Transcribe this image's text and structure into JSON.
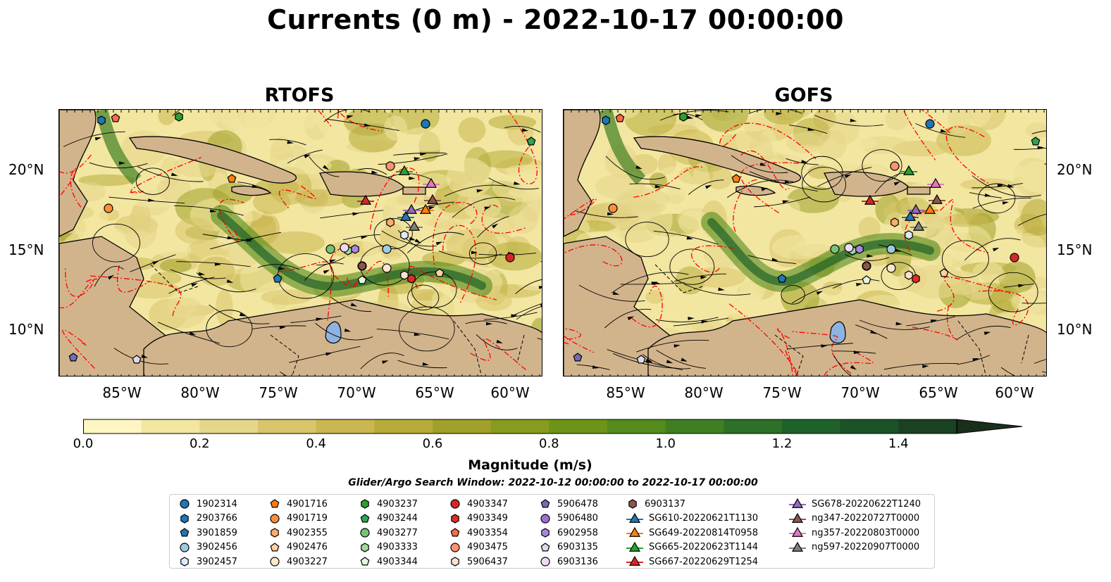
{
  "title": "Currents (0 m) - 2022-10-17 00:00:00",
  "panels": [
    {
      "title": "RTOFS"
    },
    {
      "title": "GOFS"
    }
  ],
  "axes": {
    "y_ticks": [
      "20°N",
      "15°N",
      "10°N"
    ],
    "x_ticks": [
      "85°W",
      "80°W",
      "75°W",
      "70°W",
      "65°W",
      "60°W"
    ]
  },
  "colorbar": {
    "label": "Magnitude (m/s)",
    "ticks": [
      "0.0",
      "0.2",
      "0.4",
      "0.6",
      "0.8",
      "1.0",
      "1.2",
      "1.4"
    ],
    "min": 0.0,
    "max": 1.5,
    "step": 0.1,
    "extend": "max",
    "colors": [
      "#fdf6c2",
      "#f2e6a1",
      "#e5d68a",
      "#d8c56c",
      "#cab751",
      "#b7ab3a",
      "#a1a12a",
      "#869c1c",
      "#6d9419",
      "#548b1c",
      "#3f7f22",
      "#2c7127",
      "#1f6229",
      "#1b5227",
      "#1a4121",
      "#192f1a"
    ]
  },
  "search_window": "Glider/Argo Search Window: 2022-10-12 00:00:00 to 2022-10-17 00:00:00",
  "legend": {
    "columns": [
      [
        {
          "label": "1902314",
          "marker": "circle",
          "color": "#1f77b4"
        },
        {
          "label": "2903766",
          "marker": "hexagon",
          "color": "#1f77b4"
        },
        {
          "label": "3901859",
          "marker": "pentagon",
          "color": "#1f77b4"
        },
        {
          "label": "3902456",
          "marker": "circle",
          "color": "#9ecae1"
        },
        {
          "label": "3902457",
          "marker": "hexagon",
          "color": "#deebf7"
        }
      ],
      [
        {
          "label": "4901716",
          "marker": "pentagon",
          "color": "#ff7f0e"
        },
        {
          "label": "4901719",
          "marker": "circle",
          "color": "#fd8d3c"
        },
        {
          "label": "4902355",
          "marker": "hexagon",
          "color": "#fdae6b"
        },
        {
          "label": "4902476",
          "marker": "pentagon",
          "color": "#fdd0a2"
        },
        {
          "label": "4903227",
          "marker": "circle",
          "color": "#fee6ce"
        }
      ],
      [
        {
          "label": "4903237",
          "marker": "hexagon",
          "color": "#2ca02c"
        },
        {
          "label": "4903244",
          "marker": "pentagon",
          "color": "#31a354"
        },
        {
          "label": "4903277",
          "marker": "circle",
          "color": "#74c476"
        },
        {
          "label": "4903333",
          "marker": "hexagon",
          "color": "#a1d99b"
        },
        {
          "label": "4903344",
          "marker": "pentagon",
          "color": "#e5f5e0"
        }
      ],
      [
        {
          "label": "4903347",
          "marker": "circle",
          "color": "#d62728"
        },
        {
          "label": "4903349",
          "marker": "hexagon",
          "color": "#de2d26"
        },
        {
          "label": "4903354",
          "marker": "pentagon",
          "color": "#fb6a4a"
        },
        {
          "label": "4903475",
          "marker": "circle",
          "color": "#fc9272"
        },
        {
          "label": "5906437",
          "marker": "hexagon",
          "color": "#fee0d2"
        }
      ],
      [
        {
          "label": "5906478",
          "marker": "pentagon",
          "color": "#756bb1"
        },
        {
          "label": "5906480",
          "marker": "circle",
          "color": "#9e6fcf"
        },
        {
          "label": "6902958",
          "marker": "hexagon",
          "color": "#a987e0"
        },
        {
          "label": "6903135",
          "marker": "pentagon",
          "color": "#dadaeb"
        },
        {
          "label": "6903136",
          "marker": "circle",
          "color": "#efd9f7"
        }
      ],
      [
        {
          "label": "6903137",
          "marker": "hexagon",
          "color": "#8c564b"
        },
        {
          "label": "SG610-20220621T1130",
          "marker": "triangle-line",
          "color": "#1f77b4"
        },
        {
          "label": "SG649-20220814T0958",
          "marker": "triangle-line",
          "color": "#ff7f0e"
        },
        {
          "label": "SG665-20220623T1144",
          "marker": "triangle-line",
          "color": "#2ca02c"
        },
        {
          "label": "SG667-20220629T1254",
          "marker": "triangle-line",
          "color": "#d62728"
        }
      ],
      [
        {
          "label": "SG678-20220622T1240",
          "marker": "triangle-line",
          "color": "#9467bd"
        },
        {
          "label": "ng347-20220727T0000",
          "marker": "triangle-line",
          "color": "#8c564b"
        },
        {
          "label": "ng357-20220803T0000",
          "marker": "triangle-line",
          "color": "#e377c2"
        },
        {
          "label": "ng597-20220907T0000",
          "marker": "triangle-line",
          "color": "#7f7f7f"
        }
      ]
    ]
  },
  "colors": {
    "land": "#d2b48c",
    "lake": "#8fb3e0",
    "contour": "#ff0000",
    "water_low": "#f6eab0"
  }
}
